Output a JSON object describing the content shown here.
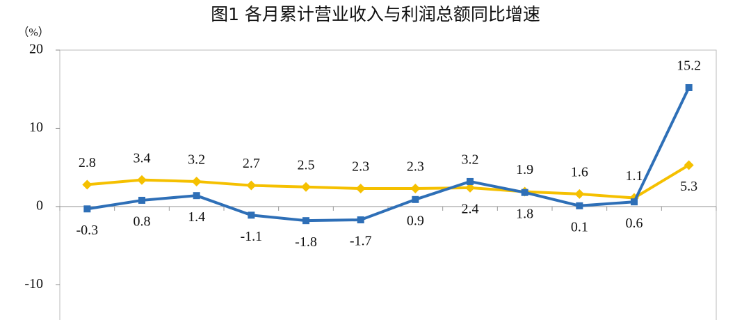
{
  "chart_data": {
    "type": "line",
    "title": "图1  各月累计营业收入与利润总额同比增速",
    "y_label": "（%）",
    "categories": [
      null,
      null,
      null,
      null,
      null,
      null,
      null,
      null,
      null,
      null,
      null,
      null
    ],
    "series": [
      {
        "color": "#f5c000",
        "marker": "diamond",
        "values": [
          2.8,
          3.4,
          3.2,
          2.7,
          2.5,
          2.3,
          2.3,
          2.4,
          1.9,
          1.6,
          1.1,
          5.3
        ]
      },
      {
        "color": "#2e6fb7",
        "marker": "square",
        "values": [
          -0.3,
          0.8,
          1.4,
          -1.1,
          -1.8,
          -1.7,
          0.9,
          3.2,
          1.8,
          0.1,
          0.6,
          15.2
        ]
      }
    ],
    "ylim": [
      -14.5,
      20
    ],
    "yticks": [
      -10,
      0,
      10,
      20
    ]
  }
}
